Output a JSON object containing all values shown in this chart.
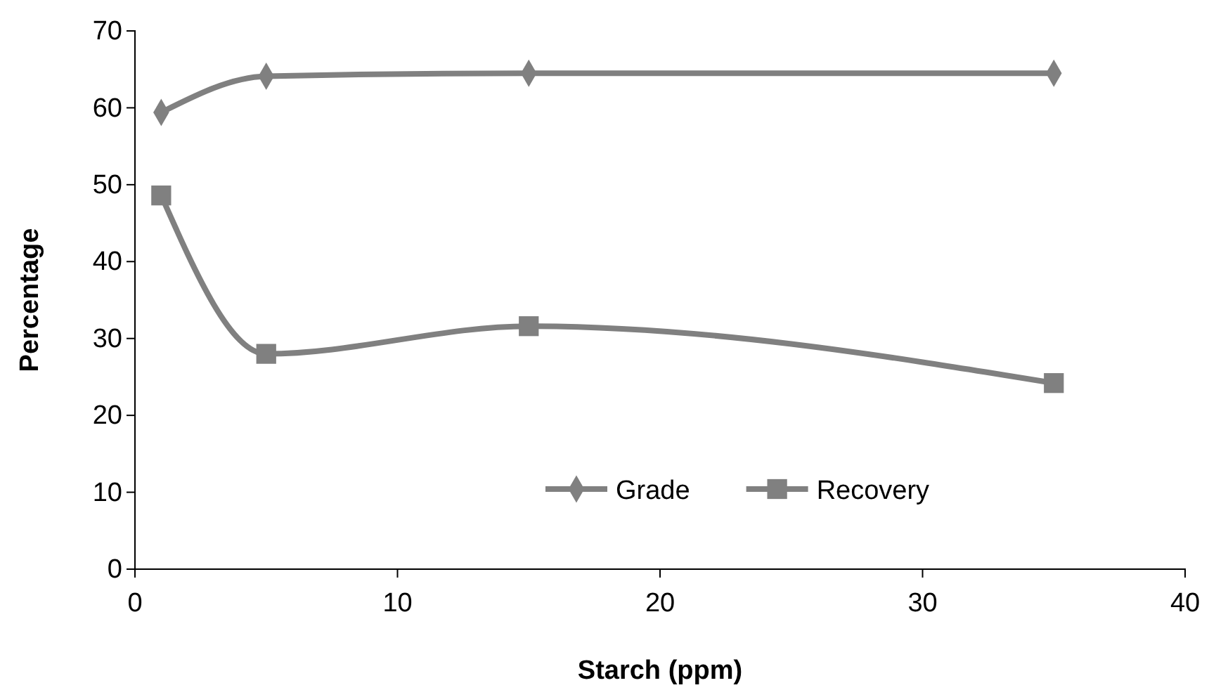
{
  "chart_data": {
    "type": "line",
    "xlabel": "Starch (ppm)",
    "ylabel": "Percentage",
    "x": [
      1,
      5,
      15,
      35
    ],
    "series": [
      {
        "name": "Grade",
        "color": "#808080",
        "marker": "diamond",
        "values": [
          59.4,
          64.1,
          64.5,
          64.5
        ]
      },
      {
        "name": "Recovery",
        "color": "#808080",
        "marker": "square",
        "values": [
          48.6,
          28,
          31.6,
          24.2
        ]
      }
    ],
    "xlim": [
      0,
      40
    ],
    "xticks": [
      0,
      10,
      20,
      30,
      40
    ],
    "ylim": [
      0,
      70
    ],
    "yticks": [
      0,
      10,
      20,
      30,
      40,
      50,
      60,
      70
    ],
    "grid": false,
    "legend": "bottom right",
    "line_style": "solid"
  }
}
